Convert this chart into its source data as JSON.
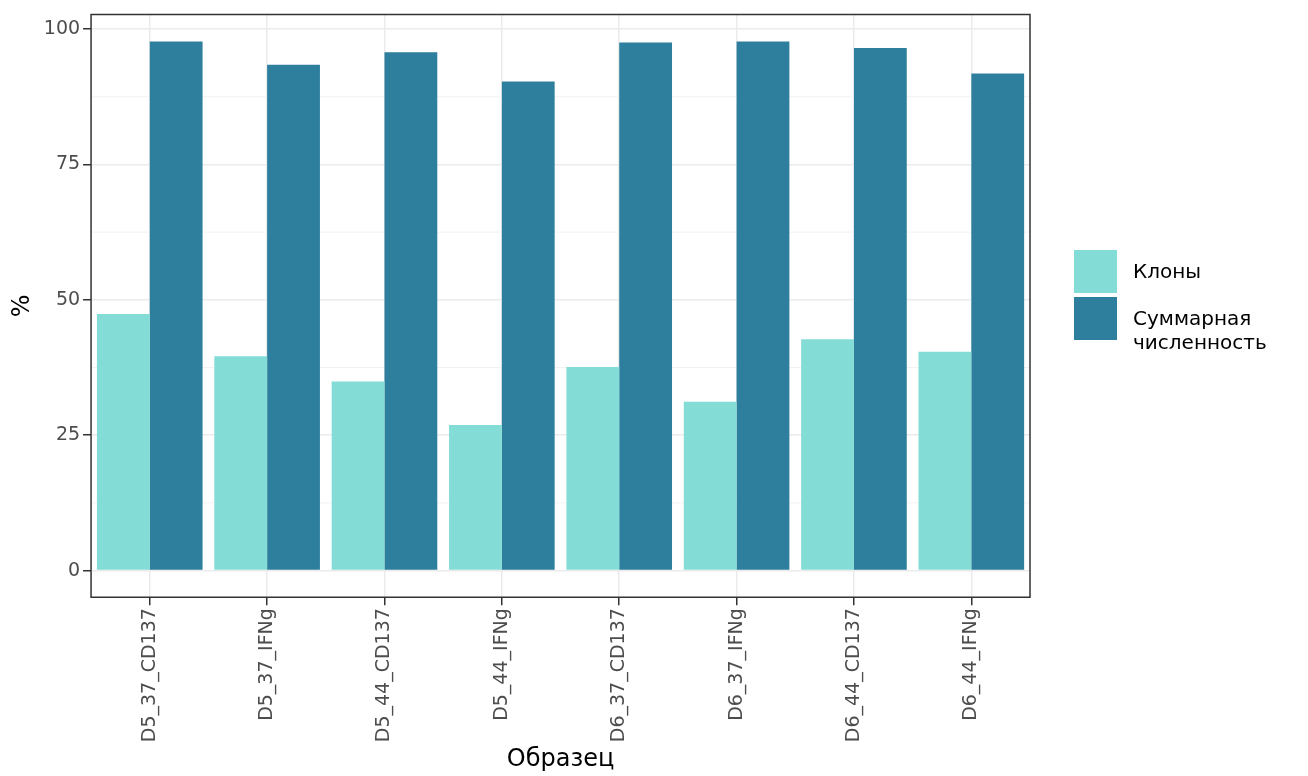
{
  "chart_data": {
    "type": "bar",
    "categories": [
      "D5_37_CD137",
      "D5_37_IFNg",
      "D5_44_CD137",
      "D5_44_IFNg",
      "D6_37_CD137",
      "D6_37_IFNg",
      "D6_44_CD137",
      "D6_44_IFNg"
    ],
    "series": [
      {
        "name": "Клоны",
        "color": "#84dcd7",
        "values": [
          47.4,
          39.6,
          34.9,
          26.9,
          37.6,
          31.2,
          42.7,
          40.4
        ]
      },
      {
        "name": "Суммарная численность",
        "color": "#2e7f9e",
        "values": [
          97.7,
          93.4,
          95.7,
          90.3,
          97.5,
          97.7,
          96.5,
          91.8
        ]
      }
    ],
    "xlabel": "Образец",
    "ylabel": "%",
    "ylim": [
      -4.9,
      102.7
    ],
    "yticks": [
      0,
      25,
      50,
      75,
      100
    ],
    "grid": true,
    "legend": "right"
  }
}
